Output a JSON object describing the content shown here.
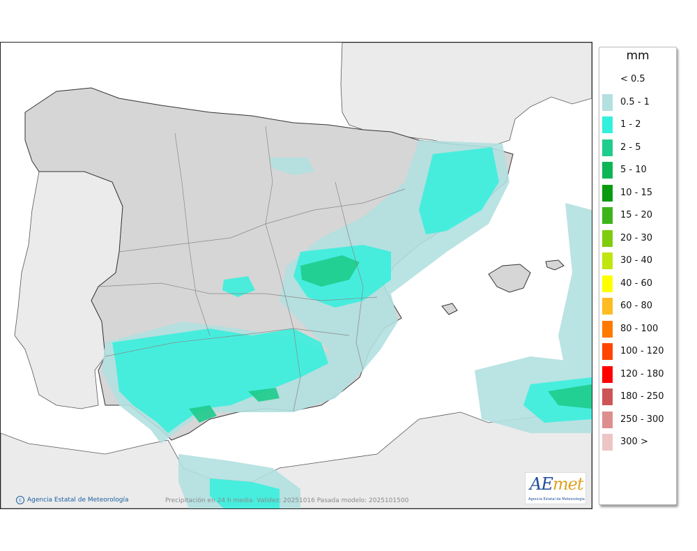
{
  "map": {
    "credit_text": "Agencia Estatal de Meteorología",
    "footer_text": "Precipitación en 24 h media. Validez: 20251016 Pasada modelo: 2025101500",
    "logo": {
      "word_a": "AE",
      "word_b": "met",
      "subtitle": "Agencia Estatal de Meteorología"
    },
    "colors": {
      "sea": "#ffffff",
      "land": "#d6d6d6",
      "foreign_land": "#ebebeb",
      "border": "#333333"
    }
  },
  "legend": {
    "title": "mm",
    "items": [
      {
        "label": "< 0.5",
        "color": ""
      },
      {
        "label": "0.5 - 1",
        "color": "#b3e0e0"
      },
      {
        "label": "1 - 2",
        "color": "#33f0dd"
      },
      {
        "label": "2 - 5",
        "color": "#1ecc8c"
      },
      {
        "label": "5 - 10",
        "color": "#0db554"
      },
      {
        "label": "10 - 15",
        "color": "#0a9a10"
      },
      {
        "label": "15 - 20",
        "color": "#3eb31a"
      },
      {
        "label": "20 - 30",
        "color": "#7fcc10"
      },
      {
        "label": "30 - 40",
        "color": "#c0e60f"
      },
      {
        "label": "40 - 60",
        "color": "#ffff00"
      },
      {
        "label": "60 - 80",
        "color": "#ffbb22"
      },
      {
        "label": "80 - 100",
        "color": "#ff7a00"
      },
      {
        "label": "100 - 120",
        "color": "#ff4400"
      },
      {
        "label": "120 - 180",
        "color": "#ff0000"
      },
      {
        "label": "180 - 250",
        "color": "#cc5555"
      },
      {
        "label": "250 - 300",
        "color": "#dd8f8f"
      },
      {
        "label": "300 >",
        "color": "#eec5c5"
      }
    ]
  }
}
